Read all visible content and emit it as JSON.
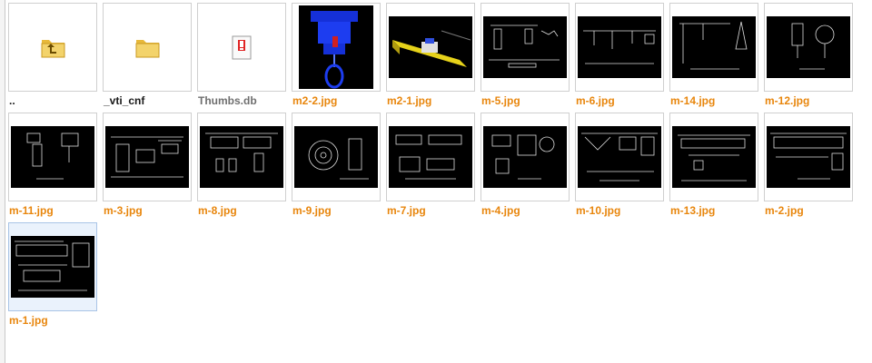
{
  "files": [
    {
      "name": "..",
      "kind": "up-folder"
    },
    {
      "name": "_vti_cnf",
      "kind": "folder"
    },
    {
      "name": "Thumbs.db",
      "kind": "db"
    },
    {
      "name": "m2-2.jpg",
      "kind": "jpg"
    },
    {
      "name": "m2-1.jpg",
      "kind": "jpg"
    },
    {
      "name": "m-5.jpg",
      "kind": "jpg"
    },
    {
      "name": "m-6.jpg",
      "kind": "jpg"
    },
    {
      "name": "m-14.jpg",
      "kind": "jpg"
    },
    {
      "name": "m-12.jpg",
      "kind": "jpg"
    },
    {
      "name": "m-11.jpg",
      "kind": "jpg"
    },
    {
      "name": "m-3.jpg",
      "kind": "jpg"
    },
    {
      "name": "m-8.jpg",
      "kind": "jpg"
    },
    {
      "name": "m-9.jpg",
      "kind": "jpg"
    },
    {
      "name": "m-7.jpg",
      "kind": "jpg"
    },
    {
      "name": "m-4.jpg",
      "kind": "jpg"
    },
    {
      "name": "m-10.jpg",
      "kind": "jpg"
    },
    {
      "name": "m-13.jpg",
      "kind": "jpg"
    },
    {
      "name": "m-2.jpg",
      "kind": "jpg"
    },
    {
      "name": "m-1.jpg",
      "kind": "jpg"
    }
  ],
  "colors": {
    "jpg_label": "#e8860d",
    "folder_label": "#1a1a1a",
    "db_label": "#6f6f6f",
    "folder_icon": "#f3d36b",
    "selection": "#eaf2fc"
  },
  "icons": {
    "up_folder": "folder-up-icon",
    "folder": "folder-icon",
    "db": "system-file-icon"
  },
  "selected_index": 18
}
